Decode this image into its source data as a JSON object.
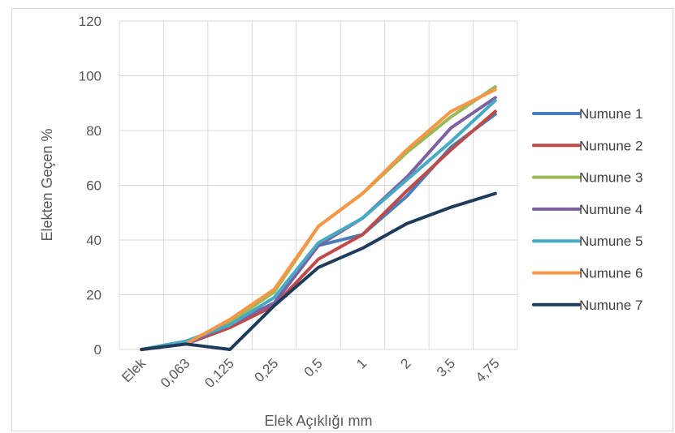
{
  "chart_data": {
    "type": "line",
    "title": "",
    "xlabel": "Elek Açıklığı mm",
    "ylabel": "Elekten Geçen %",
    "ylim": [
      0,
      120
    ],
    "yticks": [
      "0",
      "20",
      "40",
      "60",
      "80",
      "100",
      "120"
    ],
    "categories": [
      "Elek",
      "0,063",
      "0,125",
      "0,25",
      "0,5",
      "1",
      "2",
      "3,5",
      "4,75"
    ],
    "grid": true,
    "legend_position": "right",
    "series": [
      {
        "name": "Numune 1",
        "color": "#4a7ebb",
        "values": [
          0,
          3,
          9,
          17,
          38,
          42,
          56,
          74,
          86
        ]
      },
      {
        "name": "Numune 2",
        "color": "#be4b48",
        "values": [
          0,
          2,
          8,
          16,
          33,
          42,
          58,
          73,
          87
        ]
      },
      {
        "name": "Numune 3",
        "color": "#98b954",
        "values": [
          0,
          2,
          10,
          21,
          45,
          57,
          72,
          85,
          96
        ]
      },
      {
        "name": "Numune 4",
        "color": "#7d60a0",
        "values": [
          0,
          2,
          9,
          17,
          38,
          48,
          63,
          81,
          92
        ]
      },
      {
        "name": "Numune 5",
        "color": "#46aac5",
        "values": [
          0,
          3,
          9,
          19,
          39,
          48,
          62,
          76,
          91
        ]
      },
      {
        "name": "Numune 6",
        "color": "#f79646",
        "values": [
          0,
          2,
          11,
          22,
          45,
          57,
          73,
          87,
          95
        ]
      },
      {
        "name": "Numune 7",
        "color": "#1f3b5c",
        "values": [
          0,
          2,
          0,
          16,
          30,
          37,
          46,
          52,
          57
        ]
      }
    ]
  }
}
